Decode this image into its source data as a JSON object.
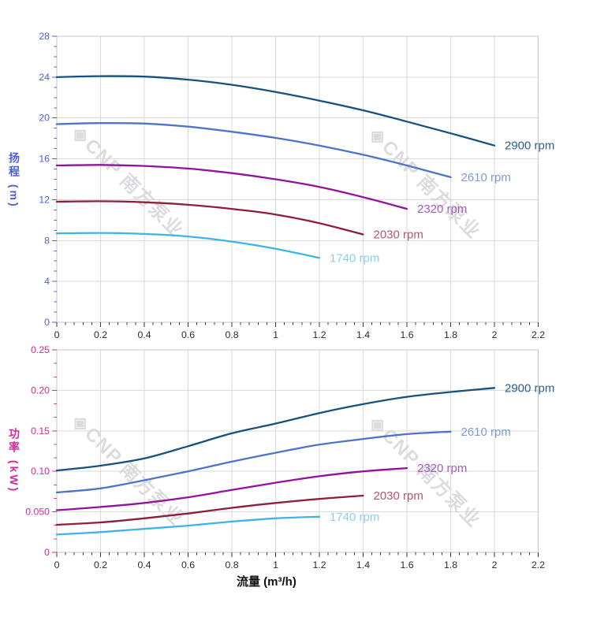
{
  "watermark": {
    "logo": "◈",
    "text": "CNP 南方泵业"
  },
  "x_axis": {
    "title": "流量 (m³/h)",
    "min": 0,
    "max": 2.2,
    "minor_step": 0.04,
    "tick_values": [
      0,
      0.2,
      0.4,
      0.6,
      0.8,
      1,
      1.2,
      1.4,
      1.6,
      1.8,
      2,
      2.2
    ],
    "tick_labels": [
      "0",
      "0.2",
      "0.4",
      "0.6",
      "0.8",
      "1",
      "1.2",
      "1.4",
      "1.6",
      "1.8",
      "2",
      "2.2"
    ],
    "color": "#2b2b2b",
    "tick_color": "#3a3a3a"
  },
  "grid": {
    "color": "#dadada",
    "border_color": "#c6c6c6"
  },
  "chart_data": [
    {
      "id": "head",
      "type": "line",
      "title": "",
      "ylabel": "扬程 (m)",
      "xlabel": "流量 (m³/h)",
      "axis_color": "#4a5fd9",
      "ylim": [
        0,
        28
      ],
      "y_tick_values": [
        0,
        4,
        8,
        12,
        16,
        20,
        24,
        28
      ],
      "y_tick_labels": [
        "0",
        "4",
        "8",
        "12",
        "16",
        "20",
        "24",
        "28"
      ],
      "y_minor_divisions": 4,
      "legend_position": "end-of-line",
      "grid": true,
      "series": [
        {
          "name": "2900 rpm",
          "color": "#17517e",
          "label_color": "#2e5e8e",
          "x": [
            0,
            0.2,
            0.4,
            0.6,
            0.8,
            1.0,
            1.2,
            1.4,
            1.6,
            1.8,
            2.0
          ],
          "y": [
            24.0,
            24.1,
            24.05,
            23.75,
            23.25,
            22.55,
            21.7,
            20.75,
            19.65,
            18.5,
            17.3
          ]
        },
        {
          "name": "2610 rpm",
          "color": "#4d74c6",
          "label_color": "#7f99d9",
          "x": [
            0,
            0.2,
            0.4,
            0.6,
            0.8,
            1.0,
            1.2,
            1.4,
            1.6,
            1.8
          ],
          "y": [
            19.4,
            19.5,
            19.45,
            19.15,
            18.65,
            18.05,
            17.3,
            16.4,
            15.35,
            14.2
          ]
        },
        {
          "name": "2320 rpm",
          "color": "#92129c",
          "label_color": "#a35cba",
          "x": [
            0,
            0.2,
            0.4,
            0.6,
            0.8,
            1.0,
            1.2,
            1.4,
            1.6
          ],
          "y": [
            15.35,
            15.4,
            15.3,
            15.05,
            14.6,
            14.0,
            13.25,
            12.25,
            11.1
          ]
        },
        {
          "name": "2030 rpm",
          "color": "#8f1e38",
          "label_color": "#b25670",
          "x": [
            0,
            0.2,
            0.4,
            0.6,
            0.8,
            1.0,
            1.2,
            1.4
          ],
          "y": [
            11.8,
            11.85,
            11.75,
            11.5,
            11.1,
            10.55,
            9.7,
            8.6
          ]
        },
        {
          "name": "1740 rpm",
          "color": "#3fb2e8",
          "label_color": "#8bccf1",
          "x": [
            0,
            0.2,
            0.4,
            0.6,
            0.8,
            1.0,
            1.2
          ],
          "y": [
            8.7,
            8.75,
            8.65,
            8.4,
            7.9,
            7.2,
            6.3
          ]
        }
      ]
    },
    {
      "id": "power",
      "type": "line",
      "title": "",
      "ylabel": "功率 (kW)",
      "xlabel": "流量 (m³/h)",
      "axis_color": "#d92695",
      "ylim": [
        0,
        0.25
      ],
      "y_tick_values": [
        0,
        0.05,
        0.1,
        0.15,
        0.2,
        0.25
      ],
      "y_tick_labels": [
        "0",
        "0.050",
        "0.10",
        "0.15",
        "0.20",
        "0.25"
      ],
      "y_minor_divisions": 3,
      "legend_position": "end-of-line",
      "grid": true,
      "series": [
        {
          "name": "2900 rpm",
          "color": "#17517e",
          "label_color": "#2e5e8e",
          "x": [
            0,
            0.2,
            0.4,
            0.6,
            0.8,
            1.0,
            1.2,
            1.4,
            1.6,
            1.8,
            2.0
          ],
          "y": [
            0.101,
            0.107,
            0.116,
            0.131,
            0.147,
            0.159,
            0.172,
            0.183,
            0.192,
            0.198,
            0.203
          ]
        },
        {
          "name": "2610 rpm",
          "color": "#4d74c6",
          "label_color": "#7f99d9",
          "x": [
            0,
            0.2,
            0.4,
            0.6,
            0.8,
            1.0,
            1.2,
            1.4,
            1.6,
            1.8
          ],
          "y": [
            0.074,
            0.079,
            0.089,
            0.1,
            0.112,
            0.123,
            0.133,
            0.14,
            0.146,
            0.149
          ]
        },
        {
          "name": "2320 rpm",
          "color": "#92129c",
          "label_color": "#a35cba",
          "x": [
            0,
            0.2,
            0.4,
            0.6,
            0.8,
            1.0,
            1.2,
            1.4,
            1.6
          ],
          "y": [
            0.052,
            0.056,
            0.061,
            0.068,
            0.077,
            0.086,
            0.094,
            0.1,
            0.104
          ]
        },
        {
          "name": "2030 rpm",
          "color": "#8f1e38",
          "label_color": "#b25670",
          "x": [
            0,
            0.2,
            0.4,
            0.6,
            0.8,
            1.0,
            1.2,
            1.4
          ],
          "y": [
            0.034,
            0.037,
            0.042,
            0.048,
            0.055,
            0.061,
            0.066,
            0.07
          ]
        },
        {
          "name": "1740 rpm",
          "color": "#3fb2e8",
          "label_color": "#8bccf1",
          "x": [
            0,
            0.2,
            0.4,
            0.6,
            0.8,
            1.0,
            1.2
          ],
          "y": [
            0.022,
            0.025,
            0.029,
            0.033,
            0.038,
            0.042,
            0.044
          ]
        }
      ]
    }
  ]
}
